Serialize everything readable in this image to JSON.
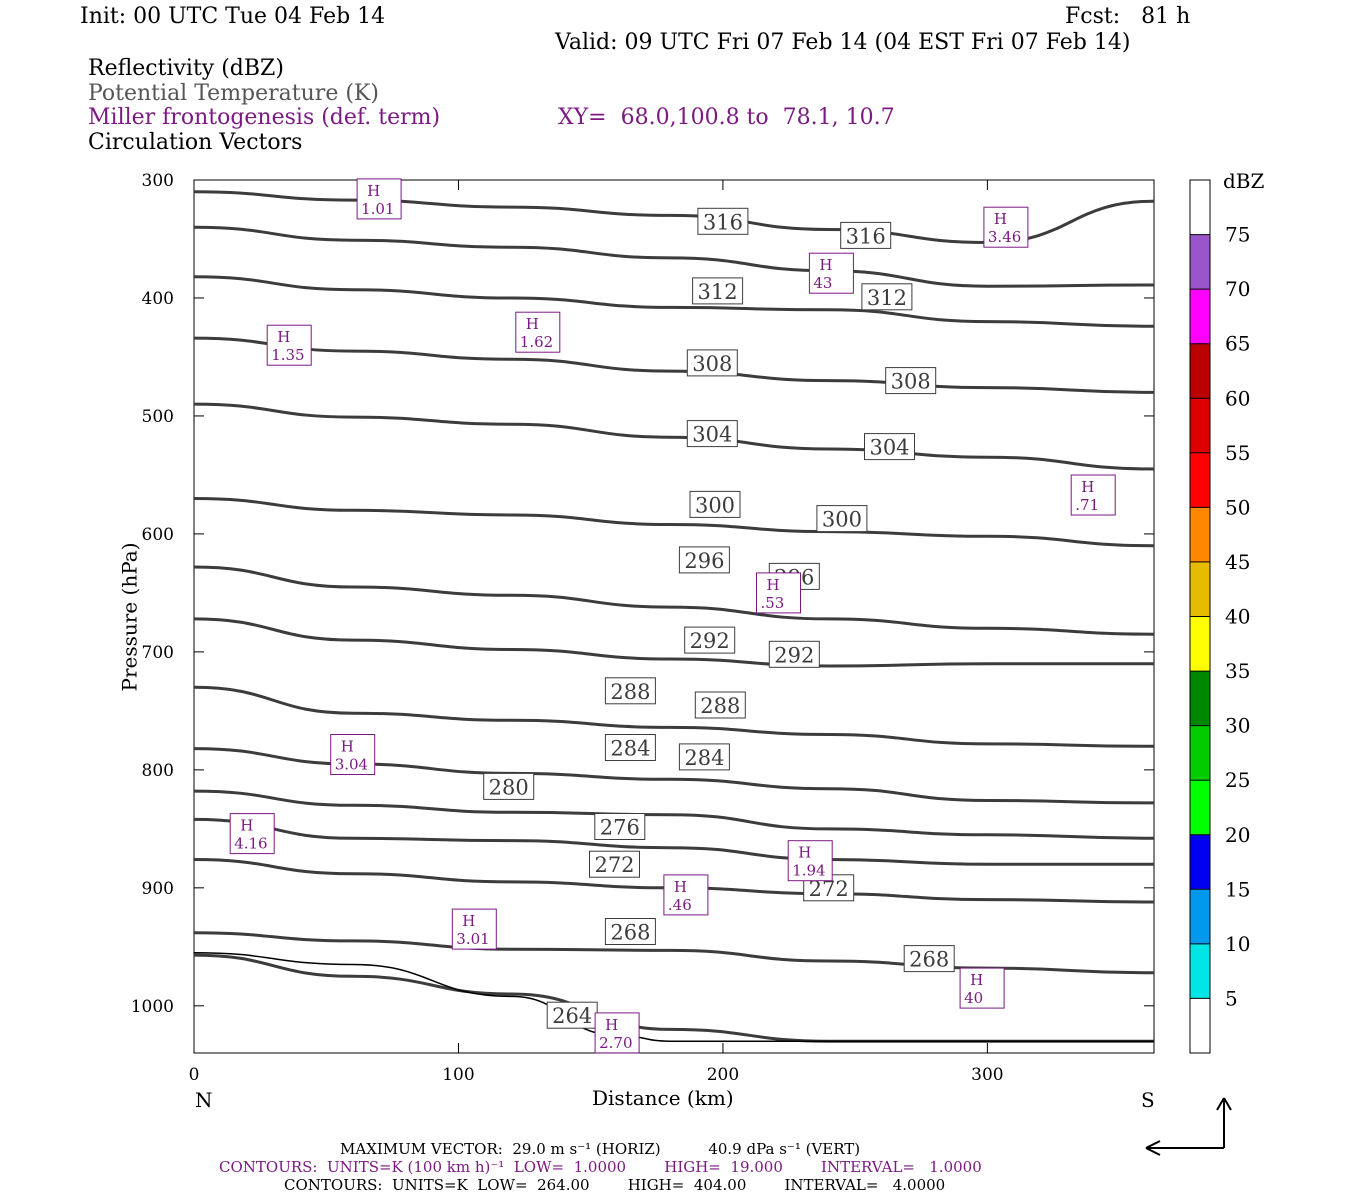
{
  "header": {
    "init": "Init: 00 UTC Tue 04 Feb 14",
    "fcst": "Fcst:   81 h",
    "valid": "Valid: 09 UTC Fri 07 Feb 14 (04 EST Fri 07 Feb 14)",
    "field1": "Reflectivity (dBZ)",
    "field2": "Potential Temperature (K)",
    "field3": "Miller frontogenesis (def. term)",
    "xy": "XY=  68.0,100.8 to  78.1, 10.7",
    "field4": "Circulation Vectors"
  },
  "axes": {
    "xlabel": "Distance (km)",
    "ylabel": "Pressure (hPa)",
    "left_end": "N",
    "right_end": "S",
    "xticks": [
      "0",
      "100",
      "200",
      "300"
    ],
    "yticks": [
      "300",
      "400",
      "500",
      "600",
      "700",
      "800",
      "900",
      "1000"
    ]
  },
  "colorbar": {
    "unit": "dBZ",
    "levels": [
      "5",
      "10",
      "15",
      "20",
      "25",
      "30",
      "35",
      "40",
      "45",
      "50",
      "55",
      "60",
      "65",
      "70",
      "75"
    ],
    "colors": [
      "#ffffff",
      "#00e5e5",
      "#0099ee",
      "#0000f0",
      "#00ff00",
      "#00cc00",
      "#008800",
      "#ffff00",
      "#e6bb00",
      "#ff8800",
      "#ff0000",
      "#dd0000",
      "#bb0000",
      "#ff00ff",
      "#9955c9",
      "#ffffff"
    ]
  },
  "footer": {
    "line1": "MAXIMUM VECTOR:  29.0 m s⁻¹ (HORIZ)          40.9 dPa s⁻¹ (VERT)",
    "line2": "CONTOURS:  UNITS=K (100 km h)⁻¹  LOW=  1.0000        HIGH=  19.000        INTERVAL=   1.0000",
    "line3": "CONTOURS:  UNITS=K  LOW=  264.00        HIGH=  404.00        INTERVAL=   4.0000"
  },
  "chart_data": {
    "type": "line",
    "title": "Reflectivity (dBZ) / Potential Temperature (K) / Miller frontogenesis (def. term) / Circulation Vectors",
    "xlabel": "Distance (km)",
    "ylabel": "Pressure (hPa)",
    "xlim": [
      0,
      363
    ],
    "ylim": [
      1040,
      300
    ],
    "theta_labels": [
      {
        "v": "316",
        "x": 200,
        "p": 335
      },
      {
        "v": "316",
        "x": 254,
        "p": 347
      },
      {
        "v": "312",
        "x": 198,
        "p": 394
      },
      {
        "v": "312",
        "x": 262,
        "p": 399
      },
      {
        "v": "308",
        "x": 196,
        "p": 455
      },
      {
        "v": "308",
        "x": 271,
        "p": 470
      },
      {
        "v": "304",
        "x": 196,
        "p": 515
      },
      {
        "v": "304",
        "x": 263,
        "p": 526
      },
      {
        "v": "300",
        "x": 197,
        "p": 575
      },
      {
        "v": "300",
        "x": 245,
        "p": 587
      },
      {
        "v": "296",
        "x": 193,
        "p": 622
      },
      {
        "v": "296",
        "x": 227,
        "p": 636
      },
      {
        "v": "292",
        "x": 195,
        "p": 690
      },
      {
        "v": "292",
        "x": 227,
        "p": 702
      },
      {
        "v": "288",
        "x": 165,
        "p": 733
      },
      {
        "v": "288",
        "x": 199,
        "p": 745
      },
      {
        "v": "284",
        "x": 165,
        "p": 781
      },
      {
        "v": "284",
        "x": 193,
        "p": 789
      },
      {
        "v": "280",
        "x": 119,
        "p": 814
      },
      {
        "v": "276",
        "x": 161,
        "p": 848
      },
      {
        "v": "272",
        "x": 159,
        "p": 880
      },
      {
        "v": "272",
        "x": 240,
        "p": 900
      },
      {
        "v": "268",
        "x": 165,
        "p": 937
      },
      {
        "v": "268",
        "x": 278,
        "p": 960
      },
      {
        "v": "264",
        "x": 143,
        "p": 1008
      }
    ],
    "theta_series": [
      {
        "x": [
          0,
          60,
          120,
          180,
          240,
          300,
          363
        ],
        "p": [
          310,
          317,
          323,
          330,
          342,
          353,
          318
        ]
      },
      {
        "x": [
          0,
          60,
          120,
          180,
          240,
          300,
          363
        ],
        "p": [
          340,
          351,
          357,
          366,
          377,
          390,
          389
        ]
      },
      {
        "x": [
          0,
          60,
          120,
          180,
          240,
          300,
          363
        ],
        "p": [
          382,
          393,
          400,
          408,
          410,
          420,
          424
        ]
      },
      {
        "x": [
          0,
          60,
          120,
          180,
          240,
          300,
          363
        ],
        "p": [
          434,
          445,
          452,
          462,
          470,
          476,
          480
        ]
      },
      {
        "x": [
          0,
          60,
          120,
          180,
          240,
          300,
          363
        ],
        "p": [
          490,
          501,
          507,
          518,
          528,
          535,
          545
        ]
      },
      {
        "x": [
          0,
          60,
          120,
          180,
          240,
          300,
          363
        ],
        "p": [
          570,
          580,
          584,
          592,
          598,
          602,
          610
        ]
      },
      {
        "x": [
          0,
          60,
          120,
          180,
          240,
          300,
          363
        ],
        "p": [
          628,
          645,
          652,
          662,
          672,
          680,
          685
        ]
      },
      {
        "x": [
          0,
          60,
          120,
          180,
          240,
          300,
          363
        ],
        "p": [
          672,
          690,
          698,
          706,
          712,
          710,
          710
        ]
      },
      {
        "x": [
          0,
          60,
          120,
          180,
          240,
          300,
          363
        ],
        "p": [
          730,
          752,
          758,
          764,
          770,
          778,
          780
        ]
      },
      {
        "x": [
          0,
          60,
          120,
          180,
          240,
          300,
          363
        ],
        "p": [
          782,
          795,
          803,
          808,
          816,
          826,
          828
        ]
      },
      {
        "x": [
          0,
          60,
          120,
          180,
          240,
          300,
          363
        ],
        "p": [
          818,
          830,
          836,
          838,
          850,
          855,
          858
        ]
      },
      {
        "x": [
          0,
          60,
          120,
          180,
          240,
          300,
          363
        ],
        "p": [
          842,
          858,
          860,
          866,
          876,
          880,
          880
        ]
      },
      {
        "x": [
          0,
          60,
          120,
          180,
          240,
          300,
          363
        ],
        "p": [
          876,
          888,
          895,
          900,
          905,
          910,
          912
        ]
      },
      {
        "x": [
          0,
          60,
          120,
          180,
          240,
          300,
          363
        ],
        "p": [
          938,
          945,
          952,
          953,
          962,
          968,
          972
        ]
      },
      {
        "x": [
          0,
          60,
          120,
          180,
          240,
          300,
          363
        ],
        "p": [
          957,
          975,
          990,
          1020,
          1030,
          1030,
          1030
        ]
      }
    ],
    "ground_line": {
      "x": [
        0,
        60,
        120,
        160,
        180,
        200,
        363
      ],
      "p": [
        955,
        965,
        992,
        1025,
        1030,
        1030,
        1030
      ]
    },
    "frontogenesis_maxima": [
      {
        "label": "H",
        "value": "1.01",
        "x": 70,
        "p": 316
      },
      {
        "label": "H",
        "value": "3.46",
        "x": 307,
        "p": 340
      },
      {
        "label": "H",
        "value": "43",
        "x": 241,
        "p": 379
      },
      {
        "label": "H",
        "value": "1.35",
        "x": 36,
        "p": 440
      },
      {
        "label": "H",
        "value": "1.62",
        "x": 130,
        "p": 429
      },
      {
        "label": "H",
        "value": ".71",
        "x": 340,
        "p": 567
      },
      {
        "label": "H",
        "value": ".53",
        "x": 221,
        "p": 650
      },
      {
        "label": "H",
        "value": "3.04",
        "x": 60,
        "p": 787
      },
      {
        "label": "H",
        "value": "4.16",
        "x": 22,
        "p": 854
      },
      {
        "label": "H",
        "value": "1.94",
        "x": 233,
        "p": 877
      },
      {
        "label": "H",
        "value": ".46",
        "x": 186,
        "p": 906
      },
      {
        "label": "H",
        "value": "3.01",
        "x": 106,
        "p": 935
      },
      {
        "label": "H",
        "value": "40",
        "x": 298,
        "p": 985
      },
      {
        "label": "H",
        "value": "2.70",
        "x": 160,
        "p": 1023
      }
    ]
  }
}
